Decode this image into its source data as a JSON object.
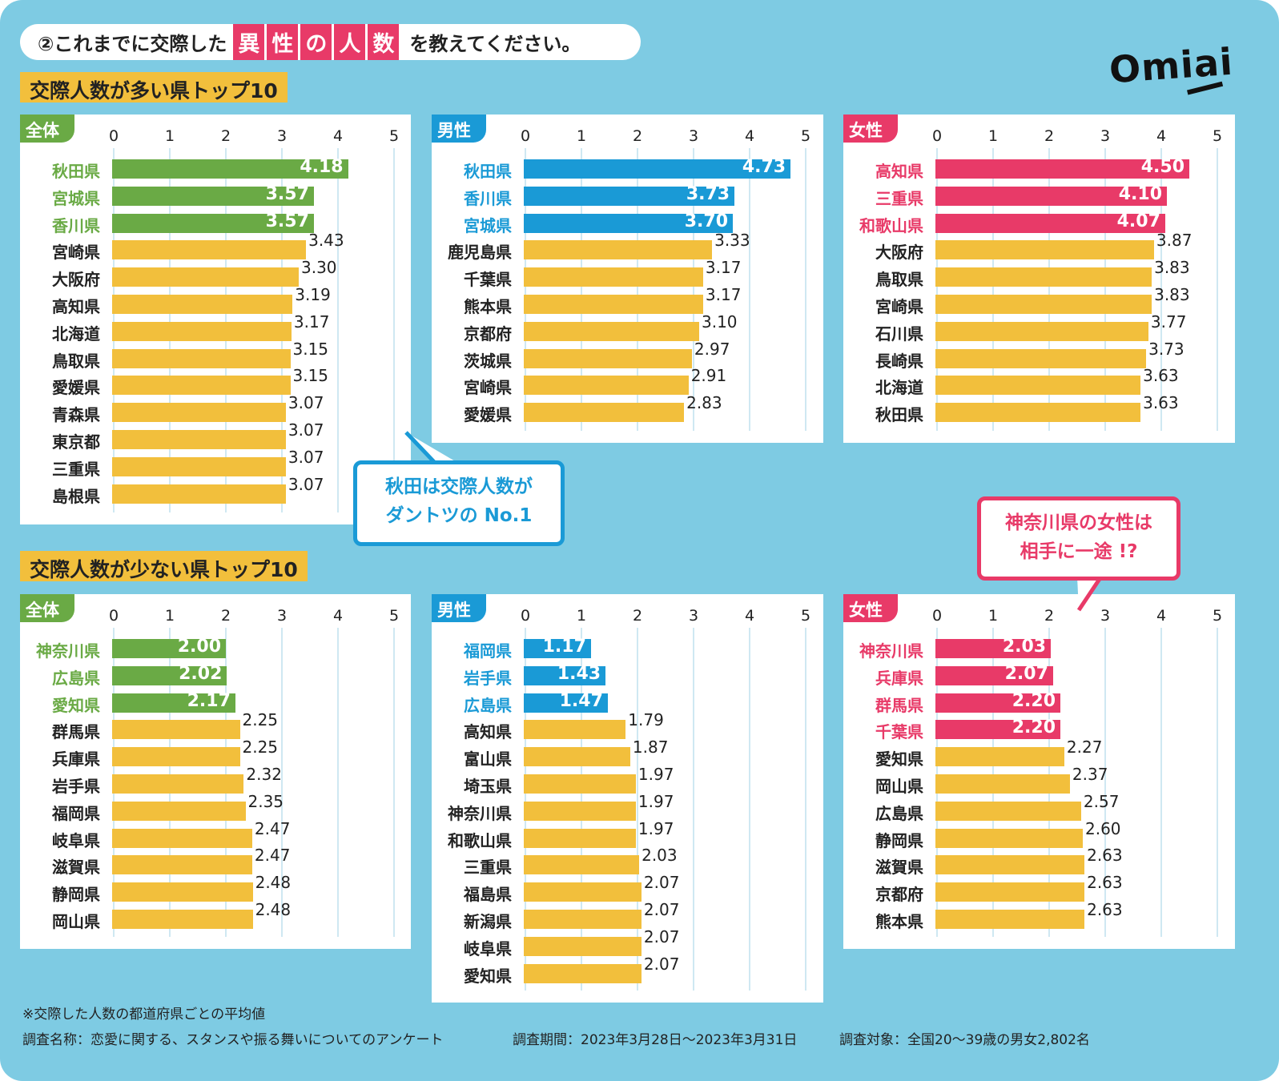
{
  "question": {
    "prefix": "②これまでに交際した",
    "highlight": [
      "異",
      "性",
      "の",
      "人",
      "数"
    ],
    "suffix": "を教えてください。"
  },
  "logo": "Omiai",
  "sections": {
    "top": "交際人数が多い県トップ10",
    "bottom": "交際人数が少ない県トップ10"
  },
  "callouts": {
    "akita": [
      "秋田は交際人数が",
      "ダントツの No.1"
    ],
    "kanagawa": [
      "神奈川県の女性は",
      "相手に一途 !?"
    ]
  },
  "colors": {
    "background": "#7ecbe3",
    "overall": "#6aaa45",
    "male": "#1a9ad6",
    "female": "#e83a68",
    "other": "#f2bf3c"
  },
  "footer": {
    "note": "※交際した人数の都道府県ごとの平均値",
    "survey_name": "調査名称：恋愛に関する、スタンスや振る舞いについてのアンケート",
    "period": "調査期間：2023年3月28日〜2023年3月31日",
    "target": "調査対象：全国20〜39歳の男女2,802名"
  },
  "chart_data": [
    {
      "type": "bar",
      "orientation": "horizontal",
      "section": "top",
      "tag": "全体",
      "highlight_color": "#6aaa45",
      "highlight_count": 3,
      "xlim": [
        0,
        5
      ],
      "ticks": [
        "0",
        "1",
        "2",
        "3",
        "4",
        "5"
      ],
      "grid": true,
      "categories": [
        "秋田県",
        "宮城県",
        "香川県",
        "宮崎県",
        "大阪府",
        "高知県",
        "北海道",
        "鳥取県",
        "愛媛県",
        "青森県",
        "東京都",
        "三重県",
        "島根県"
      ],
      "values": [
        "4.18",
        "3.57",
        "3.57",
        "3.43",
        "3.30",
        "3.19",
        "3.17",
        "3.15",
        "3.15",
        "3.07",
        "3.07",
        "3.07",
        "3.07"
      ]
    },
    {
      "type": "bar",
      "orientation": "horizontal",
      "section": "top",
      "tag": "男性",
      "highlight_color": "#1a9ad6",
      "highlight_count": 3,
      "xlim": [
        0,
        5
      ],
      "ticks": [
        "0",
        "1",
        "2",
        "3",
        "4",
        "5"
      ],
      "grid": true,
      "categories": [
        "秋田県",
        "香川県",
        "宮城県",
        "鹿児島県",
        "千葉県",
        "熊本県",
        "京都府",
        "茨城県",
        "宮崎県",
        "愛媛県"
      ],
      "values": [
        "4.73",
        "3.73",
        "3.70",
        "3.33",
        "3.17",
        "3.17",
        "3.10",
        "2.97",
        "2.91",
        "2.83"
      ]
    },
    {
      "type": "bar",
      "orientation": "horizontal",
      "section": "top",
      "tag": "女性",
      "highlight_color": "#e83a68",
      "highlight_count": 3,
      "xlim": [
        0,
        5
      ],
      "ticks": [
        "0",
        "1",
        "2",
        "3",
        "4",
        "5"
      ],
      "grid": true,
      "categories": [
        "高知県",
        "三重県",
        "和歌山県",
        "大阪府",
        "鳥取県",
        "宮崎県",
        "石川県",
        "長崎県",
        "北海道",
        "秋田県"
      ],
      "values": [
        "4.50",
        "4.10",
        "4.07",
        "3.87",
        "3.83",
        "3.83",
        "3.77",
        "3.73",
        "3.63",
        "3.63"
      ]
    },
    {
      "type": "bar",
      "orientation": "horizontal",
      "section": "bottom",
      "tag": "全体",
      "highlight_color": "#6aaa45",
      "highlight_count": 3,
      "xlim": [
        0,
        5
      ],
      "ticks": [
        "0",
        "1",
        "2",
        "3",
        "4",
        "5"
      ],
      "grid": true,
      "categories": [
        "神奈川県",
        "広島県",
        "愛知県",
        "群馬県",
        "兵庫県",
        "岩手県",
        "福岡県",
        "岐阜県",
        "滋賀県",
        "静岡県",
        "岡山県"
      ],
      "values": [
        "2.00",
        "2.02",
        "2.17",
        "2.25",
        "2.25",
        "2.32",
        "2.35",
        "2.47",
        "2.47",
        "2.48",
        "2.48"
      ]
    },
    {
      "type": "bar",
      "orientation": "horizontal",
      "section": "bottom",
      "tag": "男性",
      "highlight_color": "#1a9ad6",
      "highlight_count": 3,
      "xlim": [
        0,
        5
      ],
      "ticks": [
        "0",
        "1",
        "2",
        "3",
        "4",
        "5"
      ],
      "grid": true,
      "categories": [
        "福岡県",
        "岩手県",
        "広島県",
        "高知県",
        "富山県",
        "埼玉県",
        "神奈川県",
        "和歌山県",
        "三重県",
        "福島県",
        "新潟県",
        "岐阜県",
        "愛知県"
      ],
      "values": [
        "1.17",
        "1.43",
        "1.47",
        "1.79",
        "1.87",
        "1.97",
        "1.97",
        "1.97",
        "2.03",
        "2.07",
        "2.07",
        "2.07",
        "2.07"
      ]
    },
    {
      "type": "bar",
      "orientation": "horizontal",
      "section": "bottom",
      "tag": "女性",
      "highlight_color": "#e83a68",
      "highlight_count": 4,
      "xlim": [
        0,
        5
      ],
      "ticks": [
        "0",
        "1",
        "2",
        "3",
        "4",
        "5"
      ],
      "grid": true,
      "categories": [
        "神奈川県",
        "兵庫県",
        "群馬県",
        "千葉県",
        "愛知県",
        "岡山県",
        "広島県",
        "静岡県",
        "滋賀県",
        "京都府",
        "熊本県"
      ],
      "values": [
        "2.03",
        "2.07",
        "2.20",
        "2.20",
        "2.27",
        "2.37",
        "2.57",
        "2.60",
        "2.63",
        "2.63",
        "2.63"
      ]
    }
  ]
}
